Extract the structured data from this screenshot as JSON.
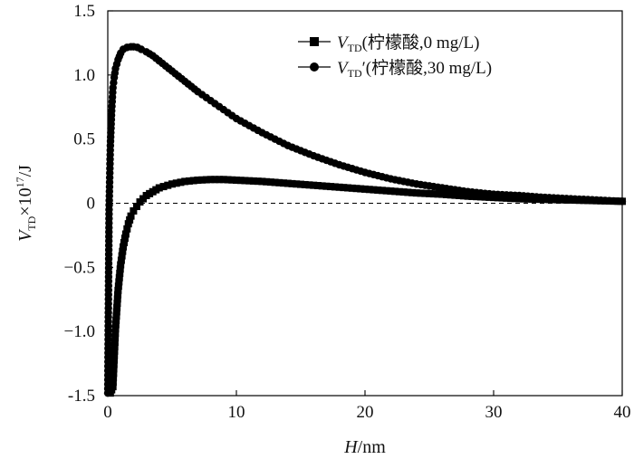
{
  "chart_data": {
    "type": "line",
    "xlabel": {
      "var": "H",
      "unit": "/nm"
    },
    "ylabel": {
      "var": "V",
      "sub": "TD",
      "rest": "×10",
      "sup": "17",
      "unit": "/J"
    },
    "xlim": [
      0,
      40
    ],
    "ylim": [
      -1.5,
      1.5
    ],
    "x_ticks": [
      "0",
      "10",
      "20",
      "30",
      "40"
    ],
    "y_ticks": [
      "1.5",
      "1.0",
      "0.5",
      "0",
      "−0.5",
      "−1.0",
      "-1.5"
    ],
    "y_tick_values": [
      1.5,
      1.0,
      0.5,
      0,
      -0.5,
      -1.0,
      -1.5
    ],
    "reference_line": {
      "y": 0,
      "style": "dashed"
    },
    "grid": false,
    "legend_position": "top-right",
    "series": [
      {
        "name": "VTD(柠檬酸,0 mg/L)",
        "legend": {
          "var": "V",
          "sub": "TD",
          "prime": "",
          "rest": "(柠檬酸,0 mg/L)"
        },
        "marker": "square",
        "x": [
          0.2,
          0.4,
          0.6,
          0.8,
          1.0,
          1.2,
          1.4,
          1.6,
          1.8,
          2.0,
          2.5,
          3.0,
          3.5,
          4.0,
          5.0,
          6.0,
          7.0,
          8.0,
          9.0,
          10.0,
          12.0,
          14.0,
          16.0,
          18.0,
          20.0,
          22.0,
          24.0,
          26.0,
          28.0,
          30.0,
          32.0,
          34.0,
          36.0,
          38.0,
          40.0
        ],
        "y": [
          -1.48,
          -1.43,
          -0.98,
          -0.68,
          -0.48,
          -0.34,
          -0.24,
          -0.16,
          -0.1,
          -0.06,
          0.01,
          0.06,
          0.09,
          0.12,
          0.15,
          0.17,
          0.18,
          0.185,
          0.185,
          0.18,
          0.17,
          0.155,
          0.14,
          0.125,
          0.11,
          0.095,
          0.08,
          0.07,
          0.055,
          0.045,
          0.035,
          0.03,
          0.025,
          0.02,
          0.015
        ]
      },
      {
        "name": "VTD'(柠檬酸,30 mg/L)",
        "legend": {
          "var": "V",
          "sub": "TD",
          "prime": "′",
          "rest": "(柠檬酸,30 mg/L)"
        },
        "marker": "circle",
        "x": [
          0.0,
          0.1,
          0.2,
          0.3,
          0.4,
          0.5,
          0.6,
          0.8,
          1.0,
          1.2,
          1.5,
          1.8,
          2.0,
          2.3,
          2.6,
          3.0,
          3.5,
          4.0,
          5.0,
          6.0,
          7.0,
          8.0,
          9.0,
          10.0,
          12.0,
          14.0,
          16.0,
          18.0,
          20.0,
          22.0,
          24.0,
          26.0,
          28.0,
          30.0,
          32.0,
          34.0,
          36.0,
          38.0,
          40.0
        ],
        "y": [
          -1.48,
          -0.05,
          0.45,
          0.72,
          0.9,
          0.98,
          1.05,
          1.12,
          1.17,
          1.2,
          1.215,
          1.22,
          1.22,
          1.215,
          1.2,
          1.18,
          1.15,
          1.11,
          1.03,
          0.95,
          0.87,
          0.8,
          0.73,
          0.66,
          0.55,
          0.45,
          0.37,
          0.3,
          0.24,
          0.19,
          0.15,
          0.12,
          0.09,
          0.07,
          0.06,
          0.045,
          0.035,
          0.025,
          0.015
        ]
      }
    ]
  }
}
